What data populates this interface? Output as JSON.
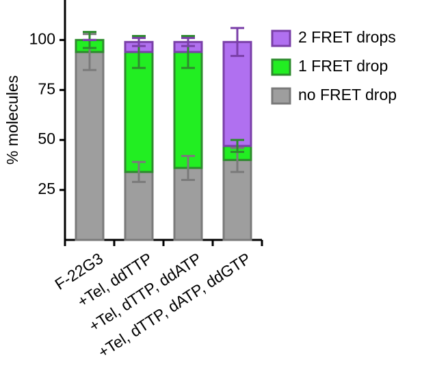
{
  "chart_data": {
    "type": "stacked-bar",
    "ylabel": "% molecules",
    "categories": [
      "F-22G3",
      "+Tel, ddTTP",
      "+Tel, dTTP, ddATP",
      "+Tel, dTTP, dATP, ddGTP"
    ],
    "series": [
      {
        "name": "no FRET drop",
        "color": "#9e9e9e",
        "edge": "#7a7a7a",
        "values": [
          94,
          34,
          36,
          40
        ],
        "errors": [
          9,
          5,
          6,
          6
        ]
      },
      {
        "name": "1 FRET drop",
        "color": "#22ee22",
        "edge": "#2e8b2e",
        "values": [
          6,
          60,
          58,
          7
        ],
        "errors": [
          4,
          8,
          8,
          3
        ]
      },
      {
        "name": "2 FRET drops",
        "color": "#b070f0",
        "edge": "#7a3fa8",
        "values": [
          0,
          5,
          5,
          52
        ],
        "errors": [
          0,
          2,
          2,
          7
        ]
      }
    ],
    "ylim": [
      0,
      120
    ],
    "yticks": [
      25,
      50,
      75,
      100
    ]
  }
}
